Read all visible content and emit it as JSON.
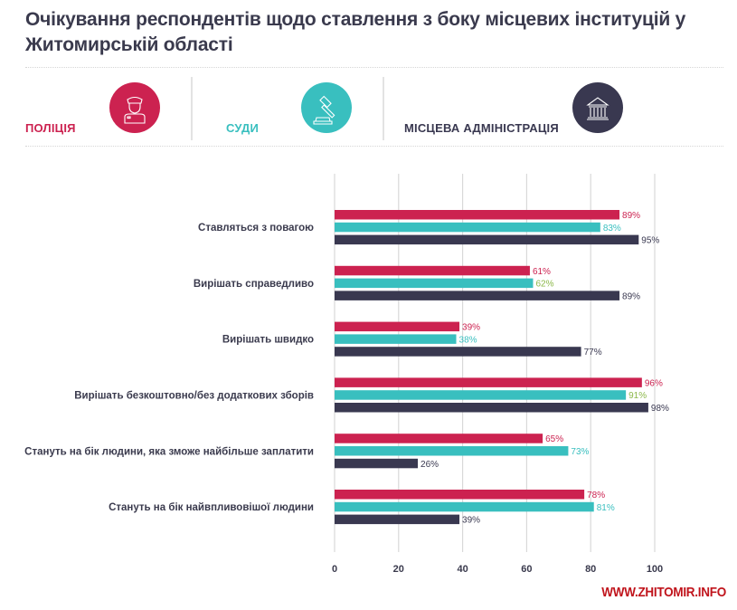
{
  "title": "Очікування респондентів щодо ставлення з боку місцевих інституцій у Житомирській області",
  "legend": [
    {
      "label": "ПОЛІЦІЯ",
      "color": "#cc2250",
      "icon": "police-officer-icon"
    },
    {
      "label": "СУДИ",
      "color": "#39bfbf",
      "icon": "gavel-icon"
    },
    {
      "label": "МІСЦЕВА АДМІНІСТРАЦІЯ",
      "color": "#393850",
      "icon": "government-building-icon"
    }
  ],
  "watermark": "WWW.ZHITOMIR.INFO",
  "chart_data": {
    "type": "bar",
    "orientation": "horizontal",
    "title": "Очікування респондентів щодо ставлення з боку місцевих інституцій у Житомирській області",
    "xlabel": "",
    "ylabel": "",
    "xlim": [
      0,
      100
    ],
    "grid": true,
    "legend_position": "top",
    "x_ticks": [
      0,
      20,
      40,
      60,
      80,
      100
    ],
    "x_tick_labels": [
      "0",
      "20",
      "40",
      "60",
      "80",
      "100"
    ],
    "categories": [
      "Ставляться з повагою",
      "Вирішать справедливо",
      "Вирішать швидко",
      "Вирішать безкоштовно/без додаткових зборів",
      "Стануть на бік людини, яка зможе найбільше заплатити",
      "Стануть на бік найвпливовішої людини"
    ],
    "series": [
      {
        "name": "ПОЛІЦІЯ",
        "color": "#cc2250",
        "label_color": "#cc2250",
        "values": [
          89,
          61,
          39,
          96,
          65,
          78
        ],
        "labels": [
          "89%",
          "61%",
          "39%",
          "96%",
          "65%",
          "78%"
        ]
      },
      {
        "name": "СУДИ",
        "color": "#39bfbf",
        "label_color": "#39bfbf",
        "values": [
          83,
          62,
          38,
          91,
          73,
          81
        ],
        "labels": [
          "83%",
          "62%",
          "38%",
          "91%",
          "73%",
          "81%"
        ],
        "label_colors": [
          "#39bfbf",
          "#8cb84a",
          "#39bfbf",
          "#8cb84a",
          "#39bfbf",
          "#39bfbf"
        ]
      },
      {
        "name": "МІСЦЕВА АДМІНІСТРАЦІЯ",
        "color": "#393850",
        "label_color": "#393850",
        "values": [
          95,
          89,
          77,
          98,
          26,
          39
        ],
        "labels": [
          "95%",
          "89%",
          "77%",
          "98%",
          "26%",
          "39%"
        ]
      }
    ]
  }
}
